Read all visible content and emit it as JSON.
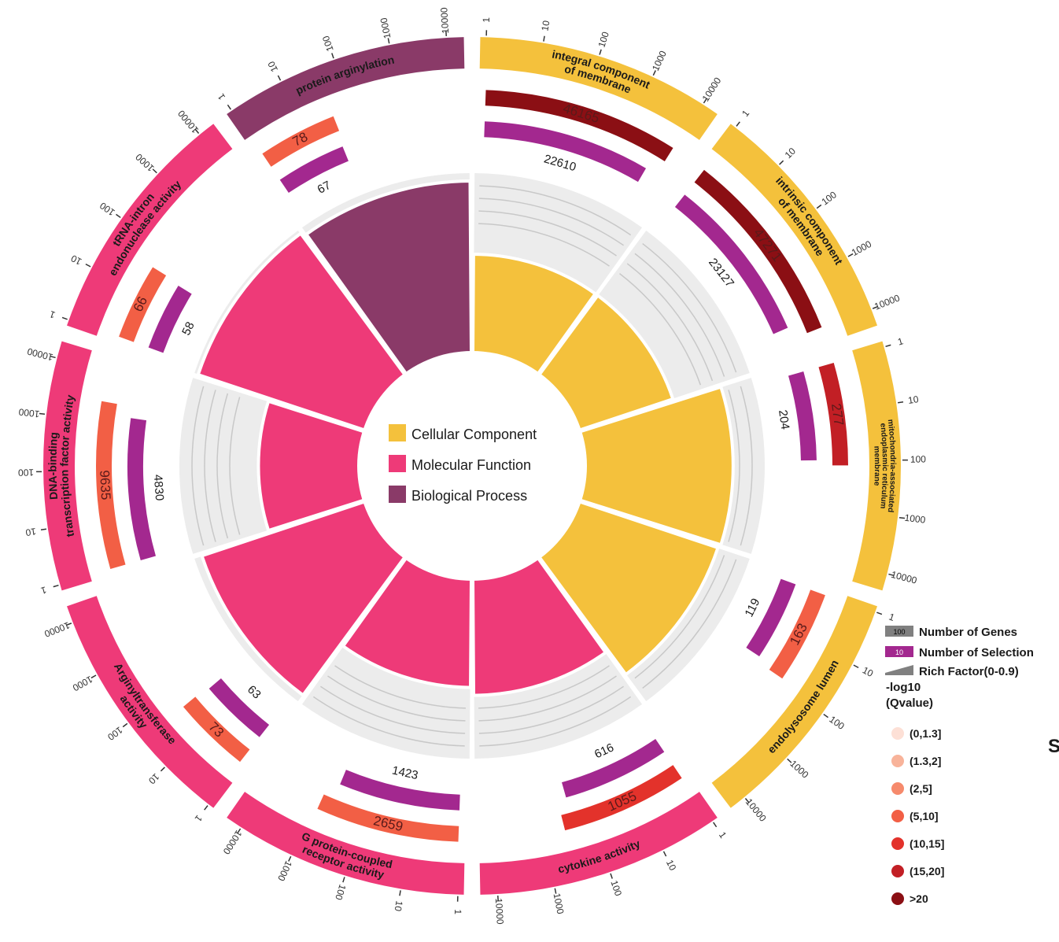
{
  "chart_data": {
    "type": "circular-go-enrichment",
    "center_legend": [
      {
        "label": "Cellular Component",
        "color": "#f4c13c"
      },
      {
        "label": "Molecular Function",
        "color": "#ee3a78"
      },
      {
        "label": "Biological Process",
        "color": "#8a3a68"
      }
    ],
    "outer_axis_ticks": [
      "1",
      "10",
      "100",
      "1000",
      "10000"
    ],
    "terms": [
      {
        "name": "integral component of membrane",
        "lines": [
          "integral component",
          "of membrane"
        ],
        "category": "Cellular Component",
        "genes": 46165,
        "selection": 22610,
        "qvalue_bin": ">20",
        "rich_factor": 0.49
      },
      {
        "name": "intrinsic component of membrane",
        "lines": [
          "intrinsic component",
          "of membrane"
        ],
        "category": "Cellular Component",
        "genes": 47271,
        "selection": 23127,
        "qvalue_bin": ">20",
        "rich_factor": 0.49
      },
      {
        "name": "mitochondria-associated endoplasmic reticulum membrane",
        "lines": [
          "mitochondria-associated",
          "endoplasmic reticulum",
          "membrane"
        ],
        "category": "Cellular Component",
        "genes": 277,
        "selection": 204,
        "qvalue_bin": "(15,20]",
        "rich_factor": 0.74
      },
      {
        "name": "endolysosome lumen",
        "lines": [
          "endolysosome lumen"
        ],
        "category": "Cellular Component",
        "genes": 163,
        "selection": 119,
        "qvalue_bin": "(5,10]",
        "rich_factor": 0.73
      },
      {
        "name": "cytokine activity",
        "lines": [
          "cytokine activity"
        ],
        "category": "Molecular Function",
        "genes": 1055,
        "selection": 616,
        "qvalue_bin": "(10,15]",
        "rich_factor": 0.58
      },
      {
        "name": "G protein-coupled receptor activity",
        "lines": [
          "G protein-coupled",
          "receptor activity"
        ],
        "category": "Molecular Function",
        "genes": 2659,
        "selection": 1423,
        "qvalue_bin": "(5,10]",
        "rich_factor": 0.54
      },
      {
        "name": "Arginyltransferase activity",
        "lines": [
          "Arginyltransferase",
          "activity"
        ],
        "category": "Molecular Function",
        "genes": 73,
        "selection": 63,
        "qvalue_bin": "(5,10]",
        "rich_factor": 0.86
      },
      {
        "name": "DNA-binding transcription factor activity",
        "lines": [
          "DNA-binding",
          "transcription factor activity"
        ],
        "category": "Molecular Function",
        "genes": 9635,
        "selection": 4830,
        "qvalue_bin": "(5,10]",
        "rich_factor": 0.5
      },
      {
        "name": "tRNA-intron endonuclease activity",
        "lines": [
          "tRNA-intron",
          "endonuclease activity"
        ],
        "category": "Molecular Function",
        "genes": 66,
        "selection": 58,
        "qvalue_bin": "(5,10]",
        "rich_factor": 0.88
      },
      {
        "name": "protein arginylation",
        "lines": [
          "protein arginylation"
        ],
        "category": "Biological Process",
        "genes": 78,
        "selection": 67,
        "qvalue_bin": "(5,10]",
        "rich_factor": 0.86
      }
    ],
    "legend": {
      "number_of_genes": {
        "label": "Number of Genes",
        "badge": "100",
        "color": "#808080"
      },
      "number_of_selection": {
        "label": "Number of Selection",
        "badge": "10",
        "color": "#a3288f"
      },
      "rich_factor": {
        "label": "Rich Factor(0-0.9)",
        "color": "#808080"
      },
      "qvalue_title": [
        "-log10",
        "(Qvalue)"
      ],
      "qvalue_bins": [
        {
          "label": "(0,1.3]",
          "color": "#fde0d6"
        },
        {
          "label": "(1.3,2]",
          "color": "#f8b39a"
        },
        {
          "label": "(2,5]",
          "color": "#f68a6c"
        },
        {
          "label": "(5,10]",
          "color": "#f25f45"
        },
        {
          "label": "(10,15]",
          "color": "#e3322b"
        },
        {
          "label": "(15,20]",
          "color": "#c21f25"
        },
        {
          "label": ">20",
          "color": "#8b0f14"
        }
      ]
    },
    "partial_text": "S"
  }
}
